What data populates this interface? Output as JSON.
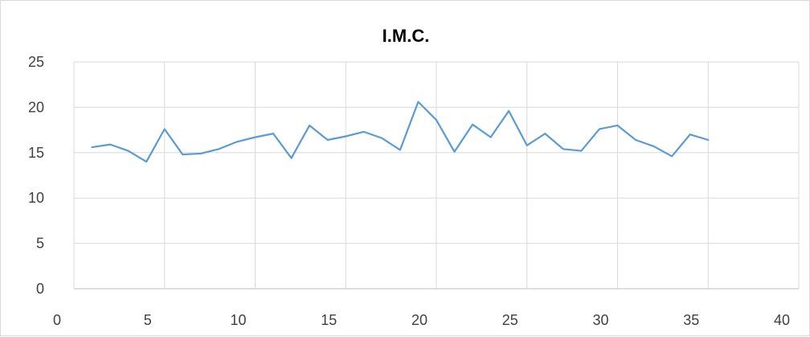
{
  "chart_data": {
    "type": "line",
    "title": "I.M.C.",
    "xlabel": "",
    "ylabel": "",
    "xlim": [
      0,
      40
    ],
    "ylim": [
      0,
      25
    ],
    "x_ticks": [
      "0",
      "5",
      "10",
      "15",
      "20",
      "25",
      "30",
      "35",
      "40"
    ],
    "y_ticks": [
      "0",
      "5",
      "10",
      "15",
      "20",
      "25"
    ],
    "grid": true,
    "legend": "none",
    "line_color": "#5b9bd5",
    "grid_color": "#d9d9d9",
    "series": [
      {
        "x": [
          1,
          2,
          3,
          4,
          5,
          6,
          7,
          8,
          9,
          10,
          11,
          12,
          13,
          14,
          15,
          16,
          17,
          18,
          19,
          20,
          21,
          22,
          23,
          24,
          25,
          26,
          27,
          28,
          29,
          30,
          31,
          32,
          33,
          34,
          35
        ],
        "values": [
          15.6,
          15.9,
          15.2,
          14.0,
          17.6,
          14.8,
          14.9,
          15.4,
          16.2,
          16.7,
          17.1,
          14.4,
          18.0,
          16.4,
          16.8,
          17.3,
          16.6,
          15.3,
          20.6,
          18.6,
          15.1,
          18.1,
          16.7,
          19.6,
          15.8,
          17.1,
          15.4,
          15.2,
          17.6,
          18.0,
          16.4,
          15.7,
          14.6,
          17.0,
          16.4
        ]
      }
    ]
  }
}
